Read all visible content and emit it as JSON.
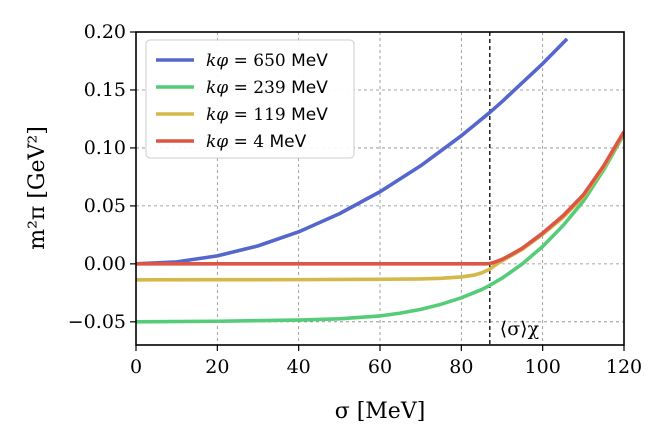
{
  "chart_data": {
    "type": "line",
    "title": "",
    "xlabel": "σ [MeV]",
    "ylabel": "m²π [GeV²]",
    "xlim": [
      0,
      120
    ],
    "ylim": [
      -0.07,
      0.2
    ],
    "xticks": [
      0,
      20,
      40,
      60,
      80,
      100,
      120
    ],
    "xtick_labels": [
      "0",
      "20",
      "40",
      "60",
      "80",
      "100",
      "120"
    ],
    "yticks": [
      -0.05,
      0.0,
      0.05,
      0.1,
      0.15,
      0.2
    ],
    "ytick_labels": [
      "−0.05",
      "0.00",
      "0.05",
      "0.10",
      "0.15",
      "0.20"
    ],
    "grid": true,
    "legend_position": "top-left",
    "vline": {
      "x": 87,
      "label": "⟨σ⟩χ",
      "style": "dashed"
    },
    "series": [
      {
        "name": "kφ = 650 MeV",
        "color": "#5566cc",
        "x": [
          0,
          10,
          20,
          30,
          40,
          50,
          60,
          70,
          80,
          87,
          90,
          100,
          106
        ],
        "y": [
          0.0,
          0.0017,
          0.0069,
          0.0155,
          0.0276,
          0.0432,
          0.0622,
          0.0846,
          0.1105,
          0.1306,
          0.1399,
          0.1727,
          0.1941
        ]
      },
      {
        "name": "kφ = 239 MeV",
        "color": "#55cc77",
        "x": [
          0,
          20,
          40,
          50,
          60,
          65,
          70,
          75,
          80,
          85,
          87,
          90,
          95,
          100,
          105,
          110,
          115,
          120
        ],
        "y": [
          -0.05,
          -0.0495,
          -0.0485,
          -0.0474,
          -0.0449,
          -0.0425,
          -0.0393,
          -0.0349,
          -0.0293,
          -0.0222,
          -0.0185,
          -0.0124,
          0.0,
          0.015,
          0.033,
          0.054,
          0.081,
          0.112
        ]
      },
      {
        "name": "kφ = 119 MeV",
        "color": "#d4b84a",
        "x": [
          0,
          20,
          40,
          60,
          70,
          75,
          80,
          83,
          85,
          87,
          88,
          89,
          90,
          92,
          95,
          100,
          105,
          110,
          115,
          120
        ],
        "y": [
          -0.0138,
          -0.0137,
          -0.0136,
          -0.0133,
          -0.013,
          -0.0125,
          -0.0113,
          -0.0098,
          -0.0078,
          -0.0045,
          -0.002,
          0.0005,
          0.0025,
          0.0065,
          0.0125,
          0.0255,
          0.04,
          0.058,
          0.083,
          0.113
        ]
      },
      {
        "name": "kφ = 4 MeV",
        "color": "#dd5544",
        "x": [
          0,
          20,
          40,
          60,
          80,
          86,
          87,
          88,
          89,
          90,
          92,
          95,
          100,
          105,
          110,
          115,
          120
        ],
        "y": [
          0.0,
          0.0,
          0.0,
          0.0,
          0.0,
          0.0,
          0.0003,
          0.0012,
          0.0025,
          0.0038,
          0.0075,
          0.0135,
          0.0265,
          0.0415,
          0.0595,
          0.0845,
          0.114
        ]
      }
    ],
    "legend": [
      {
        "math": "kφ",
        "value": "= 650",
        "unit": "MeV"
      },
      {
        "math": "kφ",
        "value": "= 239",
        "unit": "MeV"
      },
      {
        "math": "kφ",
        "value": "= 119",
        "unit": "MeV"
      },
      {
        "math": "kφ",
        "value": "= 4",
        "unit": "MeV"
      }
    ]
  }
}
